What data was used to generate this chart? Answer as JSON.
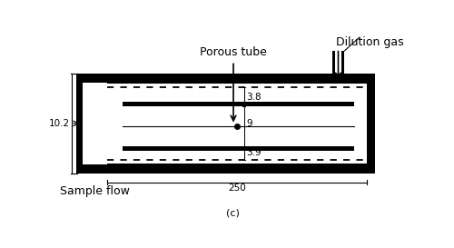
{
  "title": "(c)",
  "label_porous_tube": "Porous tube",
  "label_dilution_gas": "Dilution gas",
  "label_sample_flow": "Sample flow",
  "dim_102": "10.2",
  "dim_9": "9",
  "dim_38": "3.8",
  "dim_39": "3.9",
  "dim_250": "250",
  "bg_color": "#ffffff",
  "line_color": "#000000"
}
